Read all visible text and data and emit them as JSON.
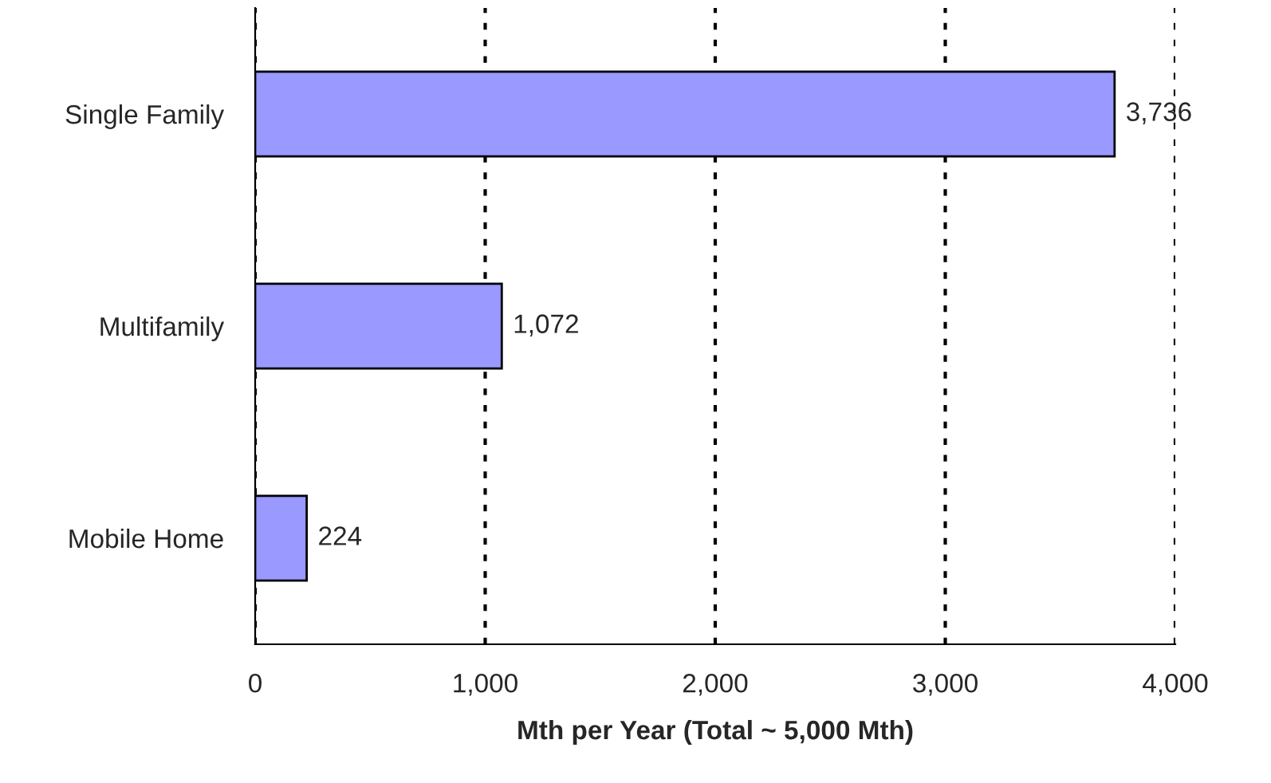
{
  "chart_data": {
    "type": "bar",
    "orientation": "horizontal",
    "categories": [
      "Single Family",
      "Multifamily",
      "Mobile Home"
    ],
    "values": [
      3736,
      1072,
      224
    ],
    "color": "#9999ff",
    "value_labels": [
      "3,736",
      "1,072",
      "224"
    ],
    "xlim": [
      0,
      4000
    ],
    "xticks": [
      {
        "value": 0,
        "label": "0"
      },
      {
        "value": 1000,
        "label": "1,000"
      },
      {
        "value": 2000,
        "label": "2,000"
      },
      {
        "value": 3000,
        "label": "3,000"
      },
      {
        "value": 4000,
        "label": "4,000"
      }
    ],
    "xlabel": "Mth per Year (Total ~ 5,000 Mth)",
    "grid": "x",
    "legend": false
  }
}
